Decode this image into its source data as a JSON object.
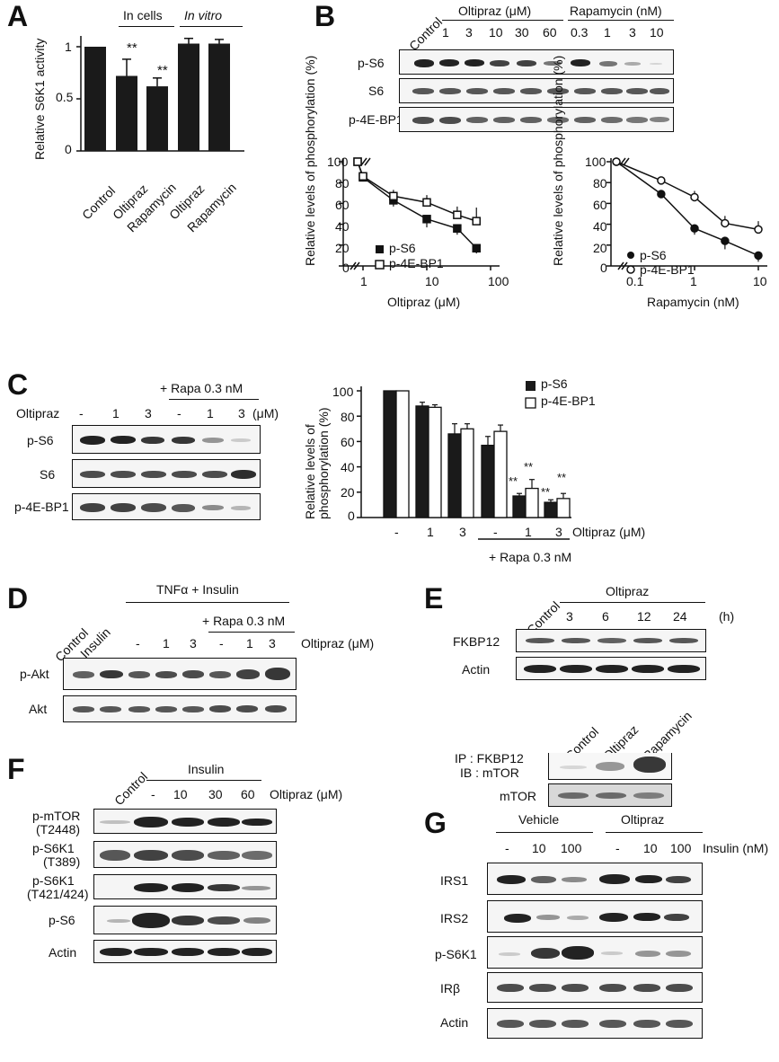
{
  "panel_labels": {
    "A": "A",
    "B": "B",
    "C": "C",
    "D": "D",
    "E": "E",
    "F": "F",
    "G": "G"
  },
  "panelA": {
    "group_in_cells": "In cells",
    "group_in_vitro": "In vitro",
    "ylabel": "Relative S6K1 activity",
    "yticks": [
      "1",
      "0.5",
      "0"
    ],
    "categories": [
      "Control",
      "Oltipraz",
      "Rapamycin",
      "Oltipraz",
      "Rapamycin"
    ],
    "sig": [
      "**",
      "**"
    ]
  },
  "panelB": {
    "header": {
      "control": "Control",
      "oltipraz": "Oltipraz (μM)",
      "rapamycin": "Rapamycin (nM)",
      "olt_doses": [
        "1",
        "3",
        "10",
        "30",
        "60"
      ],
      "rapa_doses": [
        "0.3",
        "1",
        "3",
        "10"
      ]
    },
    "blots": [
      "p-S6",
      "S6",
      "p-4E-BP1"
    ],
    "left_plot": {
      "ylabel": "Relative levels of phosphorylation (%)",
      "xlabel": "Oltipraz (μM)",
      "yticks": [
        "100",
        "80",
        "60",
        "40",
        "20",
        "0"
      ],
      "xticks": [
        "1",
        "10",
        "100"
      ],
      "legend": [
        "p-S6",
        "p-4E-BP1"
      ]
    },
    "right_plot": {
      "ylabel": "Relative levels of phosphorylation (%)",
      "xlabel": "Rapamycin (nM)",
      "yticks": [
        "100",
        "80",
        "60",
        "40",
        "20",
        "0"
      ],
      "xticks": [
        "0.1",
        "1",
        "10"
      ],
      "legend": [
        "p-S6",
        "p-4E-BP1"
      ]
    }
  },
  "panelC": {
    "rapa_header": "+ Rapa 0.3 nM",
    "row_label": "Oltipraz",
    "doses": [
      "-",
      "1",
      "3",
      "-",
      "1",
      "3"
    ],
    "unit": "(μM)",
    "blots": [
      "p-S6",
      "S6",
      "p-4E-BP1"
    ],
    "chart": {
      "ylabel": "Relative levels of phosphorylation (%)",
      "yticks": [
        "100",
        "80",
        "60",
        "40",
        "20",
        "0"
      ],
      "xticks": [
        "-",
        "1",
        "3",
        "-",
        "1",
        "3"
      ],
      "xlabel": "Oltipraz (μM)",
      "rapa_label": "+ Rapa 0.3 nM",
      "legend": [
        "p-S6",
        "p-4E-BP1"
      ],
      "sig": "**"
    }
  },
  "panelD": {
    "tnf_header": "TNFα + Insulin",
    "rapa_header": "+ Rapa 0.3 nM",
    "lanes": [
      "Control",
      "Insulin"
    ],
    "doses": [
      "-",
      "1",
      "3",
      "-",
      "1",
      "3"
    ],
    "dose_label": "Oltipraz (μM)",
    "blots": [
      "p-Akt",
      "Akt"
    ]
  },
  "panelE": {
    "control": "Control",
    "oltipraz": "Oltipraz",
    "times": [
      "3",
      "6",
      "12",
      "24"
    ],
    "unit": "(h)",
    "blots": [
      "FKBP12",
      "Actin"
    ],
    "ip_lanes": [
      "Control",
      "Oltipraz",
      "Rapamycin"
    ],
    "ip_label1": "IP : FKBP12",
    "ip_label2": "IB : mTOR",
    "ip_blot2": "mTOR"
  },
  "panelF": {
    "control": "Control",
    "insulin": "Insulin",
    "doses": [
      "-",
      "10",
      "30",
      "60"
    ],
    "dose_label": "Oltipraz (μM)",
    "blots": [
      "p-mTOR",
      "(T2448)",
      "p-S6K1",
      "(T389)",
      "p-S6K1",
      "(T421/424)",
      "p-S6",
      "Actin"
    ]
  },
  "panelG": {
    "vehicle": "Vehicle",
    "oltipraz": "Oltipraz",
    "doses": [
      "-",
      "10",
      "100",
      "-",
      "10",
      "100"
    ],
    "unit": "Insulin (nM)",
    "blots": [
      "IRS1",
      "IRS2",
      "p-S6K1",
      "IRβ",
      "Actin"
    ]
  },
  "chart_data": [
    {
      "type": "bar",
      "categories": [
        "Control",
        "Oltipraz",
        "Rapamycin",
        "Oltipraz",
        "Rapamycin"
      ],
      "values": [
        1.0,
        0.72,
        0.62,
        1.03,
        1.03
      ],
      "errors": [
        0,
        0.16,
        0.08,
        0.05,
        0.04
      ],
      "ylabel": "Relative S6K1 activity",
      "ylim": [
        0,
        1.2
      ]
    },
    {
      "type": "line",
      "xlabel": "Oltipraz (μM)",
      "ylabel": "Relative levels of phosphorylation (%)",
      "xscale": "log",
      "x": [
        1,
        3,
        10,
        30,
        60
      ],
      "series": [
        {
          "name": "p-S6",
          "values": [
            85,
            63,
            45,
            36,
            17
          ]
        },
        {
          "name": "p-4E-BP1",
          "values": [
            86,
            67,
            61,
            49,
            43
          ]
        }
      ],
      "control": 100,
      "ylim": [
        0,
        100
      ]
    },
    {
      "type": "line",
      "xlabel": "Rapamycin (nM)",
      "ylabel": "Relative levels of phosphorylation (%)",
      "xscale": "log",
      "x": [
        0.3,
        1,
        3,
        10
      ],
      "series": [
        {
          "name": "p-S6",
          "values": [
            69,
            36,
            24,
            10
          ]
        },
        {
          "name": "p-4E-BP1",
          "values": [
            82,
            66,
            41,
            35
          ]
        }
      ],
      "control": 100,
      "ylim": [
        0,
        100
      ]
    },
    {
      "type": "bar",
      "xlabel": "Oltipraz (μM)",
      "ylabel": "Relative levels of phosphorylation (%)",
      "categories": [
        "-",
        "1",
        "3",
        "- (+Rapa)",
        "1 (+Rapa)",
        "3 (+Rapa)"
      ],
      "series": [
        {
          "name": "p-S6",
          "values": [
            100,
            88,
            66,
            57,
            17,
            12
          ]
        },
        {
          "name": "p-4E-BP1",
          "values": [
            100,
            87,
            70,
            68,
            23,
            15
          ]
        }
      ],
      "ylim": [
        0,
        100
      ]
    }
  ]
}
